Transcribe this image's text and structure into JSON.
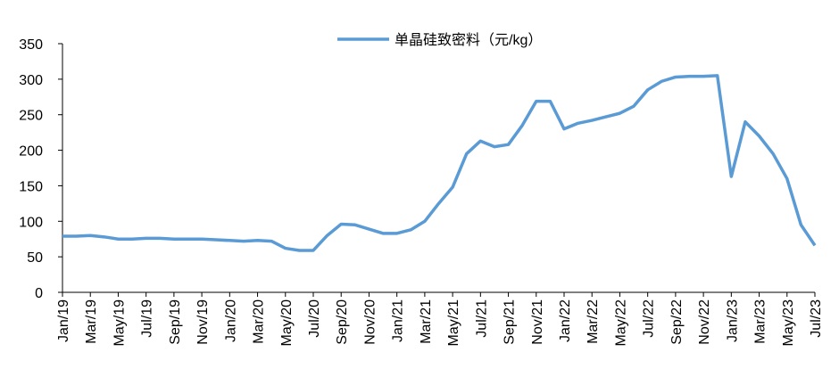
{
  "chart_data": {
    "type": "line",
    "categories": [
      "Jan/19",
      null,
      "Mar/19",
      null,
      "May/19",
      null,
      "Jul/19",
      null,
      "Sep/19",
      null,
      "Nov/19",
      null,
      "Jan/20",
      null,
      "Mar/20",
      null,
      "May/20",
      null,
      "Jul/20",
      null,
      "Sep/20",
      null,
      "Nov/20",
      null,
      "Jan/21",
      null,
      "Mar/21",
      null,
      "May/21",
      null,
      "Jul/21",
      null,
      "Sep/21",
      null,
      "Nov/21",
      null,
      "Jan/22",
      null,
      "Mar/22",
      null,
      "May/22",
      null,
      "Jul/22",
      null,
      "Sep/22",
      null,
      "Nov/22",
      null,
      "Jan/23",
      null,
      "Mar/23",
      null,
      "May/23",
      null,
      "Jul/23"
    ],
    "series": [
      {
        "name": "单晶硅致密料（元/kg）",
        "color": "#5b9bd5",
        "values": [
          79,
          79,
          80,
          78,
          75,
          75,
          76,
          76,
          75,
          75,
          75,
          74,
          73,
          72,
          73,
          72,
          62,
          59,
          59,
          80,
          96,
          95,
          89,
          83,
          83,
          88,
          100,
          125,
          148,
          195,
          213,
          205,
          208,
          235,
          269,
          269,
          230,
          238,
          242,
          247,
          252,
          262,
          285,
          297,
          303,
          304,
          304,
          305,
          163,
          240,
          220,
          195,
          160,
          95,
          66
        ]
      }
    ],
    "ylim": [
      0,
      350
    ],
    "yticks": [
      0,
      50,
      100,
      150,
      200,
      250,
      300,
      350
    ],
    "grid": false,
    "legend": "top"
  }
}
